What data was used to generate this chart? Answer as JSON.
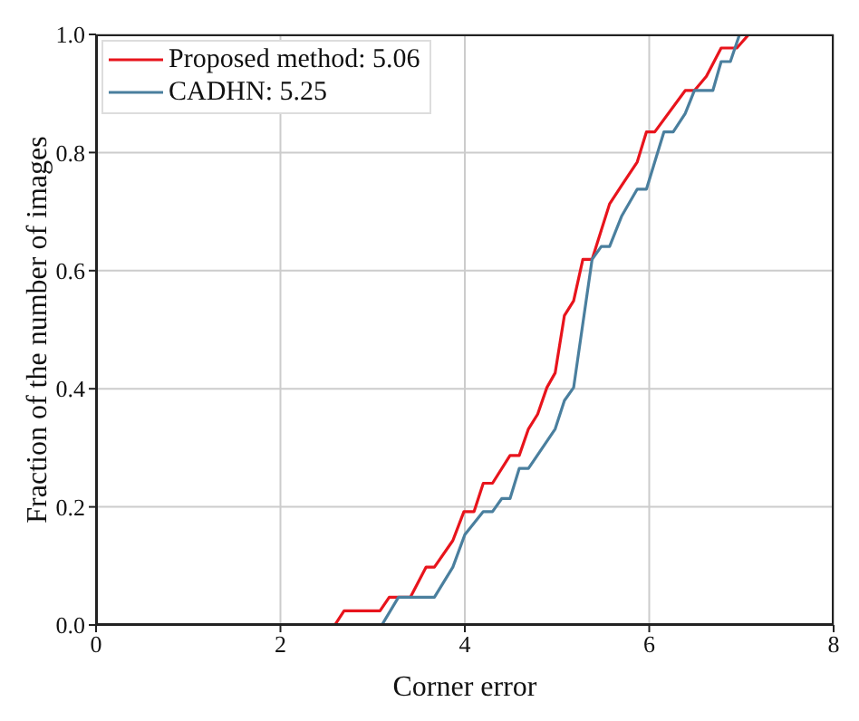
{
  "chart_data": {
    "type": "line",
    "xlabel": "Corner error",
    "ylabel": "Fraction of the number of images",
    "xlim": [
      0,
      8
    ],
    "xticks": [
      0,
      2,
      4,
      6,
      8
    ],
    "ylim": [
      0,
      1
    ],
    "yticks": [
      {
        "value": 0,
        "label": "0.0"
      },
      {
        "value": 0.2,
        "label": "0.2"
      },
      {
        "value": 0.4,
        "label": "0.4"
      },
      {
        "value": 0.6,
        "label": "0.6"
      },
      {
        "value": 0.8,
        "label": "0.8"
      },
      {
        "value": 1,
        "label": "1.0"
      }
    ],
    "grid": true,
    "legend": "top left",
    "line_style": "solid",
    "marker": "none",
    "series": [
      {
        "name": "Proposed method: 5.06",
        "color": "#e8141c",
        "x": [
          0,
          2.59,
          2.69,
          3.08,
          3.18,
          3.41,
          3.58,
          3.67,
          3.87,
          3.99,
          4.1,
          4.2,
          4.3,
          4.49,
          4.59,
          4.69,
          4.79,
          4.89,
          4.98,
          5.08,
          5.18,
          5.28,
          5.38,
          5.57,
          5.7,
          5.87,
          5.97,
          6.06,
          6.39,
          6.49,
          6.62,
          6.78,
          6.95,
          7.08
        ],
        "values": [
          0,
          0,
          0.024,
          0.024,
          0.047,
          0.047,
          0.098,
          0.098,
          0.143,
          0.192,
          0.192,
          0.24,
          0.24,
          0.287,
          0.287,
          0.332,
          0.357,
          0.402,
          0.427,
          0.524,
          0.549,
          0.619,
          0.619,
          0.713,
          0.744,
          0.784,
          0.835,
          0.835,
          0.905,
          0.905,
          0.929,
          0.977,
          0.977,
          1
        ]
      },
      {
        "name": "CADHN: 5.25",
        "color": "#4a7f9e",
        "x": [
          0,
          3.1,
          3.28,
          3.67,
          3.87,
          4.0,
          4.2,
          4.3,
          4.4,
          4.49,
          4.59,
          4.69,
          4.98,
          5.08,
          5.18,
          5.38,
          5.48,
          5.57,
          5.7,
          5.87,
          5.97,
          6.16,
          6.26,
          6.39,
          6.49,
          6.69,
          6.78,
          6.88,
          6.98
        ],
        "values": [
          0,
          0,
          0.047,
          0.047,
          0.098,
          0.153,
          0.192,
          0.192,
          0.214,
          0.214,
          0.265,
          0.265,
          0.332,
          0.38,
          0.402,
          0.619,
          0.641,
          0.641,
          0.692,
          0.738,
          0.738,
          0.835,
          0.835,
          0.866,
          0.905,
          0.905,
          0.954,
          0.954,
          1
        ]
      }
    ]
  }
}
